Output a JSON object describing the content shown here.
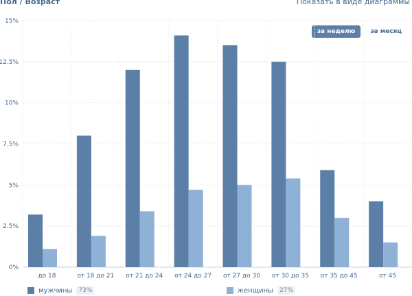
{
  "header": {
    "title": "Пол / Возраст",
    "view_link": "Показать в виде диаграммы"
  },
  "period_switch": {
    "week_label": "за неделю",
    "month_label": "за месяц",
    "active": "week"
  },
  "legend": {
    "items": [
      {
        "label": "мужчины",
        "percent": "73%",
        "color": "#5b7fa6"
      },
      {
        "label": "женщины",
        "percent": "27%",
        "color": "#8eb1d5"
      }
    ]
  },
  "chart_data": {
    "type": "bar",
    "categories": [
      "до 18",
      "от 18 до 21",
      "от 21 до 24",
      "от 24 до 27",
      "от 27 до 30",
      "от 30 до 35",
      "от 35 до 45",
      "от 45"
    ],
    "series": [
      {
        "name": "мужчины",
        "values": [
          3.2,
          8.0,
          12.0,
          14.1,
          13.5,
          12.5,
          5.9,
          4.0
        ],
        "color": "#5b7fa6"
      },
      {
        "name": "женщины",
        "values": [
          1.1,
          1.9,
          3.4,
          4.7,
          5.0,
          5.4,
          3.0,
          1.5
        ],
        "color": "#8eb1d5"
      }
    ],
    "yticks": [
      "0%",
      "2.5%",
      "5%",
      "7.5%",
      "10%",
      "12.5%",
      "15%"
    ],
    "ylim": [
      0,
      15
    ],
    "grid": true,
    "legend_position": "bottom"
  }
}
